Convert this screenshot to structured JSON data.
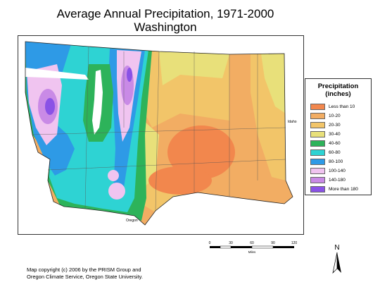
{
  "title": {
    "line1": "Average Annual Precipitation, 1971-2000",
    "line2": "Washington"
  },
  "map": {
    "neighbor_labels": {
      "idaho": "Idaho",
      "oregon": "Oregon"
    },
    "colors": {
      "lt10": "#f2874d",
      "c10_20": "#f2ad63",
      "c20_30": "#f2c569",
      "c30_40": "#e8e07a",
      "c40_60": "#2db35a",
      "c60_80": "#2ed3d3",
      "c80_100": "#2e9ae6",
      "c100_140": "#f0c4f0",
      "c140_180": "#c98ae6",
      "gt180": "#8a52e6",
      "water": "#ffffff"
    }
  },
  "legend": {
    "title_line1": "Precipitation",
    "title_line2": "(inches)",
    "items": [
      {
        "label": "Less than 10",
        "color": "#f2874d"
      },
      {
        "label": "10-20",
        "color": "#f2ad63"
      },
      {
        "label": "20-30",
        "color": "#f2c569"
      },
      {
        "label": "30-40",
        "color": "#e8e07a"
      },
      {
        "label": "40-60",
        "color": "#2db35a"
      },
      {
        "label": "60-80",
        "color": "#2ed3d3"
      },
      {
        "label": "80-100",
        "color": "#2e9ae6"
      },
      {
        "label": "100-140",
        "color": "#f0c4f0"
      },
      {
        "label": "140-180",
        "color": "#c98ae6"
      },
      {
        "label": "More than 180",
        "color": "#8a52e6"
      }
    ]
  },
  "scale_bar": {
    "ticks": [
      "0",
      "30",
      "60",
      "90",
      "120"
    ],
    "unit": "Miles"
  },
  "north_arrow": {
    "label": "N"
  },
  "copyright": {
    "line1": "Map copyright (c) 2006 by the PRISM Group and",
    "line2": "Oregon Climate Service, Oregon State University."
  }
}
